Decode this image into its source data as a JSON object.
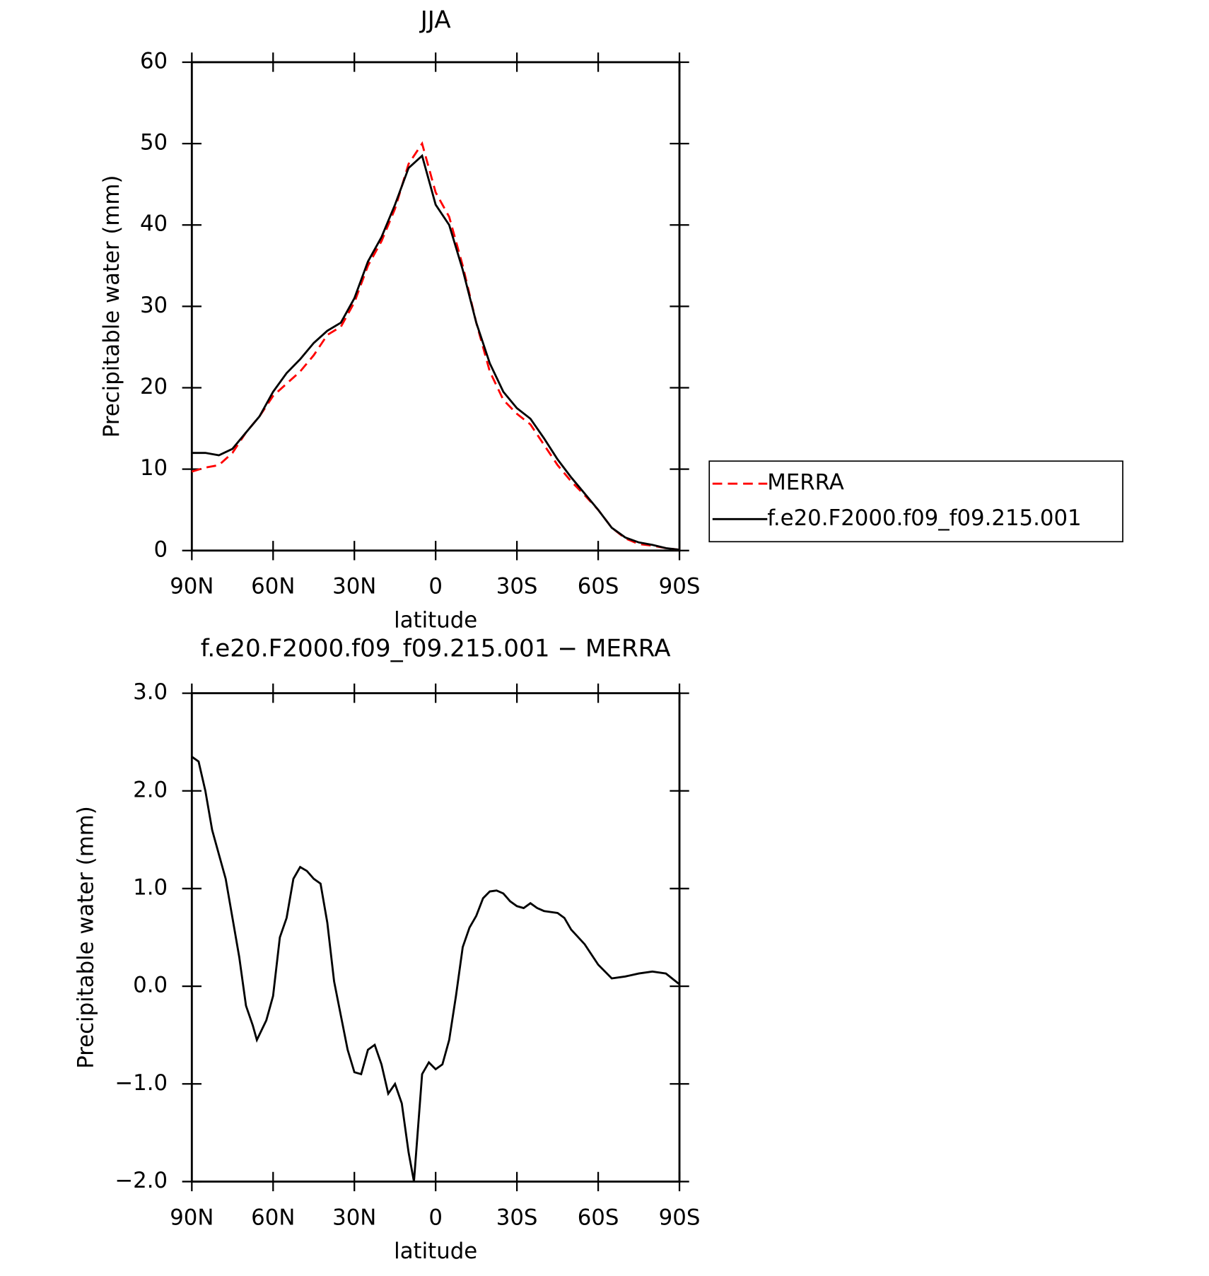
{
  "chart_data": [
    {
      "type": "line",
      "title": "JJA",
      "xlabel": "latitude",
      "ylabel": "Precipitable water (mm)",
      "x": [
        90,
        85,
        80,
        75,
        70,
        65,
        60,
        55,
        50,
        45,
        40,
        35,
        30,
        25,
        20,
        15,
        10,
        5,
        0,
        -5,
        -10,
        -15,
        -20,
        -25,
        -30,
        -35,
        -40,
        -45,
        -50,
        -55,
        -60,
        -65,
        -70,
        -75,
        -80,
        -85,
        -90
      ],
      "series": [
        {
          "name": "MERRA",
          "color": "#ff0000",
          "linestyle": "dashed",
          "values": [
            9.7,
            10.2,
            10.5,
            12,
            14.5,
            16.5,
            19,
            20.5,
            22,
            24,
            26.5,
            27.5,
            30.5,
            35,
            38,
            42,
            47.5,
            50,
            44,
            41,
            35,
            28,
            22,
            18.5,
            16.8,
            15.5,
            13,
            10.5,
            8.5,
            6.8,
            5,
            2.8,
            1.5,
            0.8,
            0.6,
            0.3,
            0.1
          ]
        },
        {
          "name": "f.e20.F2000.f09_f09.215.001",
          "color": "#000000",
          "linestyle": "solid",
          "values": [
            12,
            12,
            11.7,
            12.5,
            14.5,
            16.5,
            19.5,
            21.8,
            23.5,
            25.5,
            27,
            28,
            31,
            35.5,
            38.5,
            42.5,
            47,
            48.5,
            42.5,
            40,
            34.5,
            28,
            23,
            19.5,
            17.5,
            16.2,
            13.8,
            11.2,
            9,
            7,
            5,
            2.8,
            1.6,
            1,
            0.7,
            0.3,
            0.1
          ]
        }
      ],
      "xlim": [
        90,
        -90
      ],
      "xticks": [
        {
          "value": 90,
          "label": "90N"
        },
        {
          "value": 60,
          "label": "60N"
        },
        {
          "value": 30,
          "label": "30N"
        },
        0,
        {
          "value": -30,
          "label": "30S"
        },
        {
          "value": -60,
          "label": "60S"
        },
        {
          "value": -90,
          "label": "90S"
        }
      ],
      "ylim": [
        0,
        60
      ],
      "yticks": [
        0,
        10,
        20,
        30,
        40,
        50,
        60
      ],
      "legend": "right"
    },
    {
      "type": "line",
      "title": "f.e20.F2000.f09_f09.215.001 − MERRA",
      "xlabel": "latitude",
      "ylabel": "Precipitable water (mm)",
      "x": [
        90,
        87.5,
        85,
        82.5,
        80,
        77.5,
        75,
        72.5,
        70,
        67.5,
        66,
        62.5,
        60,
        57.5,
        55,
        52.5,
        50,
        47.5,
        45,
        42.5,
        40,
        37.5,
        35,
        32.5,
        30,
        27.5,
        25,
        22.5,
        20,
        17.5,
        15,
        12.5,
        10,
        8,
        5,
        2.5,
        0,
        -2.5,
        -5,
        -7.5,
        -10,
        -12.5,
        -15,
        -17.5,
        -20,
        -22.5,
        -25,
        -27.5,
        -30,
        -32.5,
        -35,
        -37.5,
        -40,
        -45,
        -47.5,
        -50,
        -55,
        -60,
        -65,
        -70,
        -75,
        -80,
        -85,
        -90
      ],
      "values": [
        2.35,
        2.3,
        2.0,
        1.6,
        1.35,
        1.1,
        0.7,
        0.3,
        -0.2,
        -0.4,
        -0.55,
        -0.35,
        -0.1,
        0.5,
        0.7,
        1.1,
        1.22,
        1.18,
        1.1,
        1.05,
        0.65,
        0.05,
        -0.3,
        -0.65,
        -0.88,
        -0.9,
        -0.65,
        -0.6,
        -0.8,
        -1.1,
        -1.0,
        -1.2,
        -1.7,
        -2.0,
        -0.9,
        -0.78,
        -0.85,
        -0.8,
        -0.55,
        -0.1,
        0.4,
        0.6,
        0.72,
        0.9,
        0.97,
        0.98,
        0.95,
        0.87,
        0.82,
        0.8,
        0.85,
        0.8,
        0.77,
        0.75,
        0.7,
        0.58,
        0.43,
        0.22,
        0.08,
        0.1,
        0.13,
        0.15,
        0.13,
        0.02
      ],
      "color": "#000000",
      "linestyle": "solid",
      "xlim": [
        90,
        -90
      ],
      "xticks": [
        {
          "value": 90,
          "label": "90N"
        },
        {
          "value": 60,
          "label": "60N"
        },
        {
          "value": 30,
          "label": "30N"
        },
        0,
        {
          "value": -30,
          "label": "30S"
        },
        {
          "value": -60,
          "label": "60S"
        },
        {
          "value": -90,
          "label": "90S"
        }
      ],
      "ylim": [
        -2,
        3
      ],
      "yticks": [
        {
          "value": -2,
          "label": "−2.0"
        },
        {
          "value": -1,
          "label": "−1.0"
        },
        {
          "value": 0,
          "label": "0.0"
        },
        {
          "value": 1,
          "label": "1.0"
        },
        {
          "value": 2,
          "label": "2.0"
        },
        {
          "value": 3,
          "label": "3.0"
        }
      ]
    }
  ]
}
